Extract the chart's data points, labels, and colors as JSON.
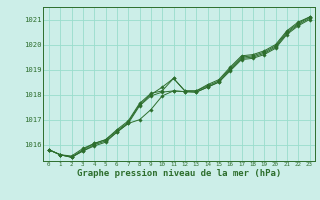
{
  "background_color": "#cceee8",
  "grid_color": "#99ddcc",
  "line_color": "#2d6e2d",
  "marker_color": "#2d6e2d",
  "xlabel": "Graphe pression niveau de la mer (hPa)",
  "xlabel_fontsize": 6.5,
  "xlabel_color": "#2d6e2d",
  "ylabel_ticks": [
    1016,
    1017,
    1018,
    1019,
    1020,
    1021
  ],
  "xlim": [
    -0.5,
    23.5
  ],
  "ylim": [
    1015.35,
    1021.5
  ],
  "xticks": [
    0,
    1,
    2,
    3,
    4,
    5,
    6,
    7,
    8,
    9,
    10,
    11,
    12,
    13,
    14,
    15,
    16,
    17,
    18,
    19,
    20,
    21,
    22,
    23
  ],
  "series": [
    [
      1015.8,
      1015.6,
      1015.55,
      1015.85,
      1016.05,
      1016.2,
      1016.6,
      1016.95,
      1017.65,
      1018.05,
      1018.15,
      1018.65,
      1018.15,
      1018.15,
      1018.4,
      1018.6,
      1019.1,
      1019.55,
      1019.6,
      1019.75,
      1020.0,
      1020.55,
      1020.9,
      1021.1
    ],
    [
      1015.8,
      1015.6,
      1015.5,
      1015.8,
      1016.05,
      1016.2,
      1016.55,
      1016.9,
      1017.6,
      1018.0,
      1018.3,
      1018.65,
      1018.15,
      1018.15,
      1018.35,
      1018.55,
      1019.05,
      1019.5,
      1019.55,
      1019.7,
      1019.95,
      1020.5,
      1020.85,
      1021.1
    ],
    [
      1015.8,
      1015.6,
      1015.5,
      1015.75,
      1016.0,
      1016.15,
      1016.5,
      1016.85,
      1017.55,
      1017.95,
      1018.1,
      1018.15,
      1018.12,
      1018.1,
      1018.3,
      1018.5,
      1019.0,
      1019.45,
      1019.5,
      1019.65,
      1019.9,
      1020.45,
      1020.8,
      1021.05
    ],
    [
      1015.8,
      1015.6,
      1015.5,
      1015.75,
      1015.95,
      1016.1,
      1016.5,
      1016.85,
      1017.0,
      1017.4,
      1017.95,
      1018.15,
      1018.12,
      1018.1,
      1018.3,
      1018.5,
      1018.95,
      1019.4,
      1019.45,
      1019.6,
      1019.85,
      1020.4,
      1020.75,
      1021.0
    ]
  ]
}
